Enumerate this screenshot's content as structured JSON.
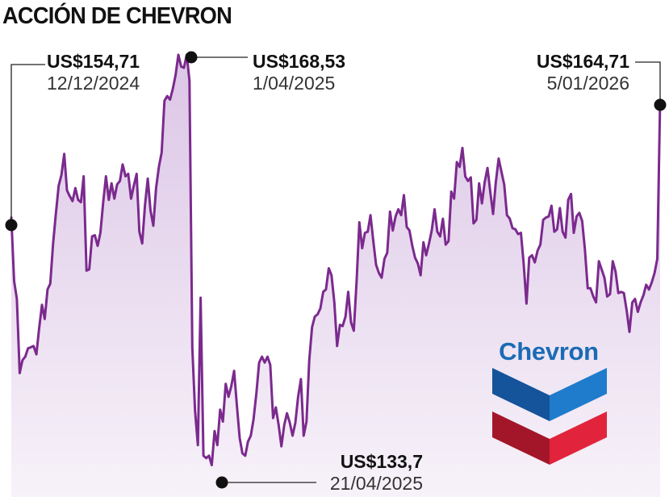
{
  "title": "ACCIÓN DE CHEVRON",
  "logo": {
    "text": "Chevron",
    "blue": "#1a6bb5",
    "red": "#d71f2f"
  },
  "annotations": {
    "start": {
      "price": "US$154,71",
      "date": "12/12/2024"
    },
    "high": {
      "price": "US$168,53",
      "date": "1/04/2025"
    },
    "low": {
      "price": "US$133,7",
      "date": "21/04/2025"
    },
    "end": {
      "price": "US$164,71",
      "date": "5/01/2026"
    }
  },
  "colors": {
    "line": "#7b2a8e",
    "fill_top": "#dcc6e6",
    "fill_bottom": "#f7f2f9"
  },
  "chart_data": {
    "type": "area",
    "title": "ACCIÓN DE CHEVRON",
    "xlabel": "",
    "ylabel": "",
    "x_start": "12/12/2024",
    "x_end": "5/01/2026",
    "ylim": [
      131,
      170
    ],
    "series": [
      {
        "values": [
          154.7,
          149.3,
          147.8,
          141.5,
          142.6,
          142.9,
          143.6,
          143.7,
          143.8,
          143.1,
          145.3,
          147.3,
          146.1,
          148.6,
          149.1,
          152.5,
          155.0,
          157.4,
          158.3,
          160.1,
          157.0,
          156.5,
          156.1,
          157.2,
          156.2,
          156.0,
          158.2,
          150.2,
          150.3,
          153.1,
          153.2,
          152.3,
          153.4,
          156.0,
          158.2,
          156.2,
          157.6,
          156.3,
          157.5,
          157.8,
          159.2,
          158.2,
          158.4,
          156.3,
          157.4,
          158.4,
          153.5,
          152.5,
          155.7,
          158.0,
          155.3,
          154.0,
          157.2,
          159.0,
          160.2,
          164.6,
          165.0,
          164.7,
          165.6,
          166.8,
          168.5,
          167.5,
          167.4,
          168.5,
          166.3,
          143.7,
          138.3,
          135.4,
          147.9,
          134.5,
          134.3,
          134.5,
          133.7,
          136.6,
          135.4,
          138.4,
          137.4,
          140.6,
          139.5,
          140.4,
          141.7,
          138.8,
          136.0,
          134.7,
          134.5,
          135.7,
          136.2,
          137.6,
          139.8,
          142.4,
          142.9,
          142.4,
          142.9,
          142.2,
          137.7,
          138.6,
          137.1,
          135.3,
          137.1,
          138.1,
          137.3,
          136.2,
          137.3,
          139.5,
          141.0,
          136.2,
          137.4,
          142.6,
          145.4,
          146.3,
          146.5,
          147.0,
          148.4,
          148.6,
          150.4,
          149.8,
          147.5,
          143.8,
          145.6,
          145.5,
          146.3,
          148.4,
          145.8,
          145.1,
          149.3,
          154.3,
          152.1,
          153.4,
          153.5,
          154.9,
          152.7,
          150.7,
          150.0,
          149.6,
          151.2,
          151.7,
          155.2,
          153.6,
          154.8,
          155.4,
          154.9,
          156.6,
          153.9,
          153.6,
          152.3,
          151.3,
          150.8,
          149.8,
          152.6,
          151.5,
          152.5,
          153.6,
          155.4,
          153.5,
          153.1,
          154.6,
          152.4,
          152.7,
          156.9,
          156.3,
          159.4,
          159.0,
          160.6,
          158.2,
          157.8,
          158.1,
          154.2,
          154.5,
          157.6,
          155.9,
          157.7,
          158.9,
          156.9,
          155.0,
          157.7,
          159.7,
          158.6,
          157.5,
          154.9,
          154.6,
          153.8,
          153.7,
          153.3,
          153.4,
          150.8,
          147.4,
          151.3,
          151.5,
          150.9,
          151.9,
          152.4,
          154.5,
          154.7,
          154.8,
          155.7,
          153.5,
          153.7,
          155.5,
          153.5,
          153.0,
          156.2,
          156.7,
          153.4,
          154.8,
          155.1,
          154.4,
          152.0,
          148.7,
          148.7,
          148.0,
          147.5,
          151.0,
          150.3,
          149.6,
          148.0,
          148.2,
          151.0,
          150.1,
          148.3,
          148.4,
          148.3,
          146.8,
          145.0,
          147.5,
          147.8,
          146.7,
          147.5,
          148.1,
          149.0,
          148.6,
          149.2,
          150.0,
          151.2,
          164.7
        ]
      }
    ],
    "annotations": [
      {
        "label": "US$154,71",
        "date": "12/12/2024",
        "value": 154.71
      },
      {
        "label": "US$168,53",
        "date": "1/04/2025",
        "value": 168.53
      },
      {
        "label": "US$133,7",
        "date": "21/04/2025",
        "value": 133.7
      },
      {
        "label": "US$164,71",
        "date": "5/01/2026",
        "value": 164.71
      }
    ],
    "grid": false,
    "legend": "none"
  }
}
